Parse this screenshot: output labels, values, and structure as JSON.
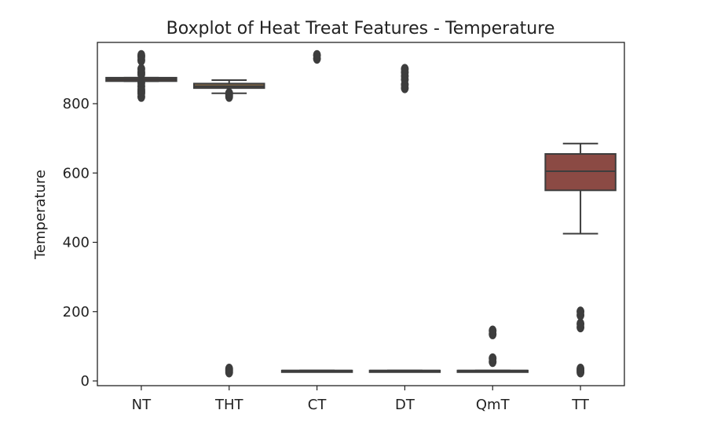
{
  "chart_data": {
    "type": "boxplot",
    "title": "Boxplot of Heat Treat Features - Temperature",
    "xlabel": "",
    "ylabel": "Temperature",
    "ylim": [
      -10,
      965
    ],
    "yticks": [
      0,
      200,
      400,
      600,
      800
    ],
    "grid": false,
    "categories": [
      "NT",
      "THT",
      "CT",
      "DT",
      "QmT",
      "TT"
    ],
    "boxes": [
      {
        "category": "NT",
        "q1": 865,
        "median": 870,
        "q3": 875,
        "whisker_low": 865,
        "whisker_high": 875,
        "outliers": [
          820,
          830,
          835,
          840,
          850,
          860,
          885,
          890,
          900,
          925,
          935,
          940
        ],
        "color": "#6b4a45"
      },
      {
        "category": "THT",
        "q1": 845,
        "median": 850,
        "q3": 858,
        "whisker_low": 830,
        "whisker_high": 868,
        "outliers": [
          25,
          30,
          35,
          820,
          825,
          830
        ],
        "color": "#7a6244"
      },
      {
        "category": "CT",
        "q1": 30,
        "median": 30,
        "q3": 30,
        "whisker_low": 30,
        "whisker_high": 30,
        "outliers": [
          930,
          940
        ],
        "color": "#3d3d3d"
      },
      {
        "category": "DT",
        "q1": 30,
        "median": 30,
        "q3": 30,
        "whisker_low": 30,
        "whisker_high": 30,
        "outliers": [
          845,
          855,
          870,
          880,
          890,
          900
        ],
        "color": "#3d3d3d"
      },
      {
        "category": "QmT",
        "q1": 30,
        "median": 30,
        "q3": 30,
        "whisker_low": 30,
        "whisker_high": 30,
        "outliers": [
          55,
          65,
          135,
          145
        ],
        "color": "#3d3d3d"
      },
      {
        "category": "TT",
        "q1": 550,
        "median": 605,
        "q3": 655,
        "whisker_low": 425,
        "whisker_high": 685,
        "outliers": [
          25,
          30,
          35,
          155,
          165,
          190,
          200
        ],
        "color": "#8b4a44"
      }
    ]
  }
}
